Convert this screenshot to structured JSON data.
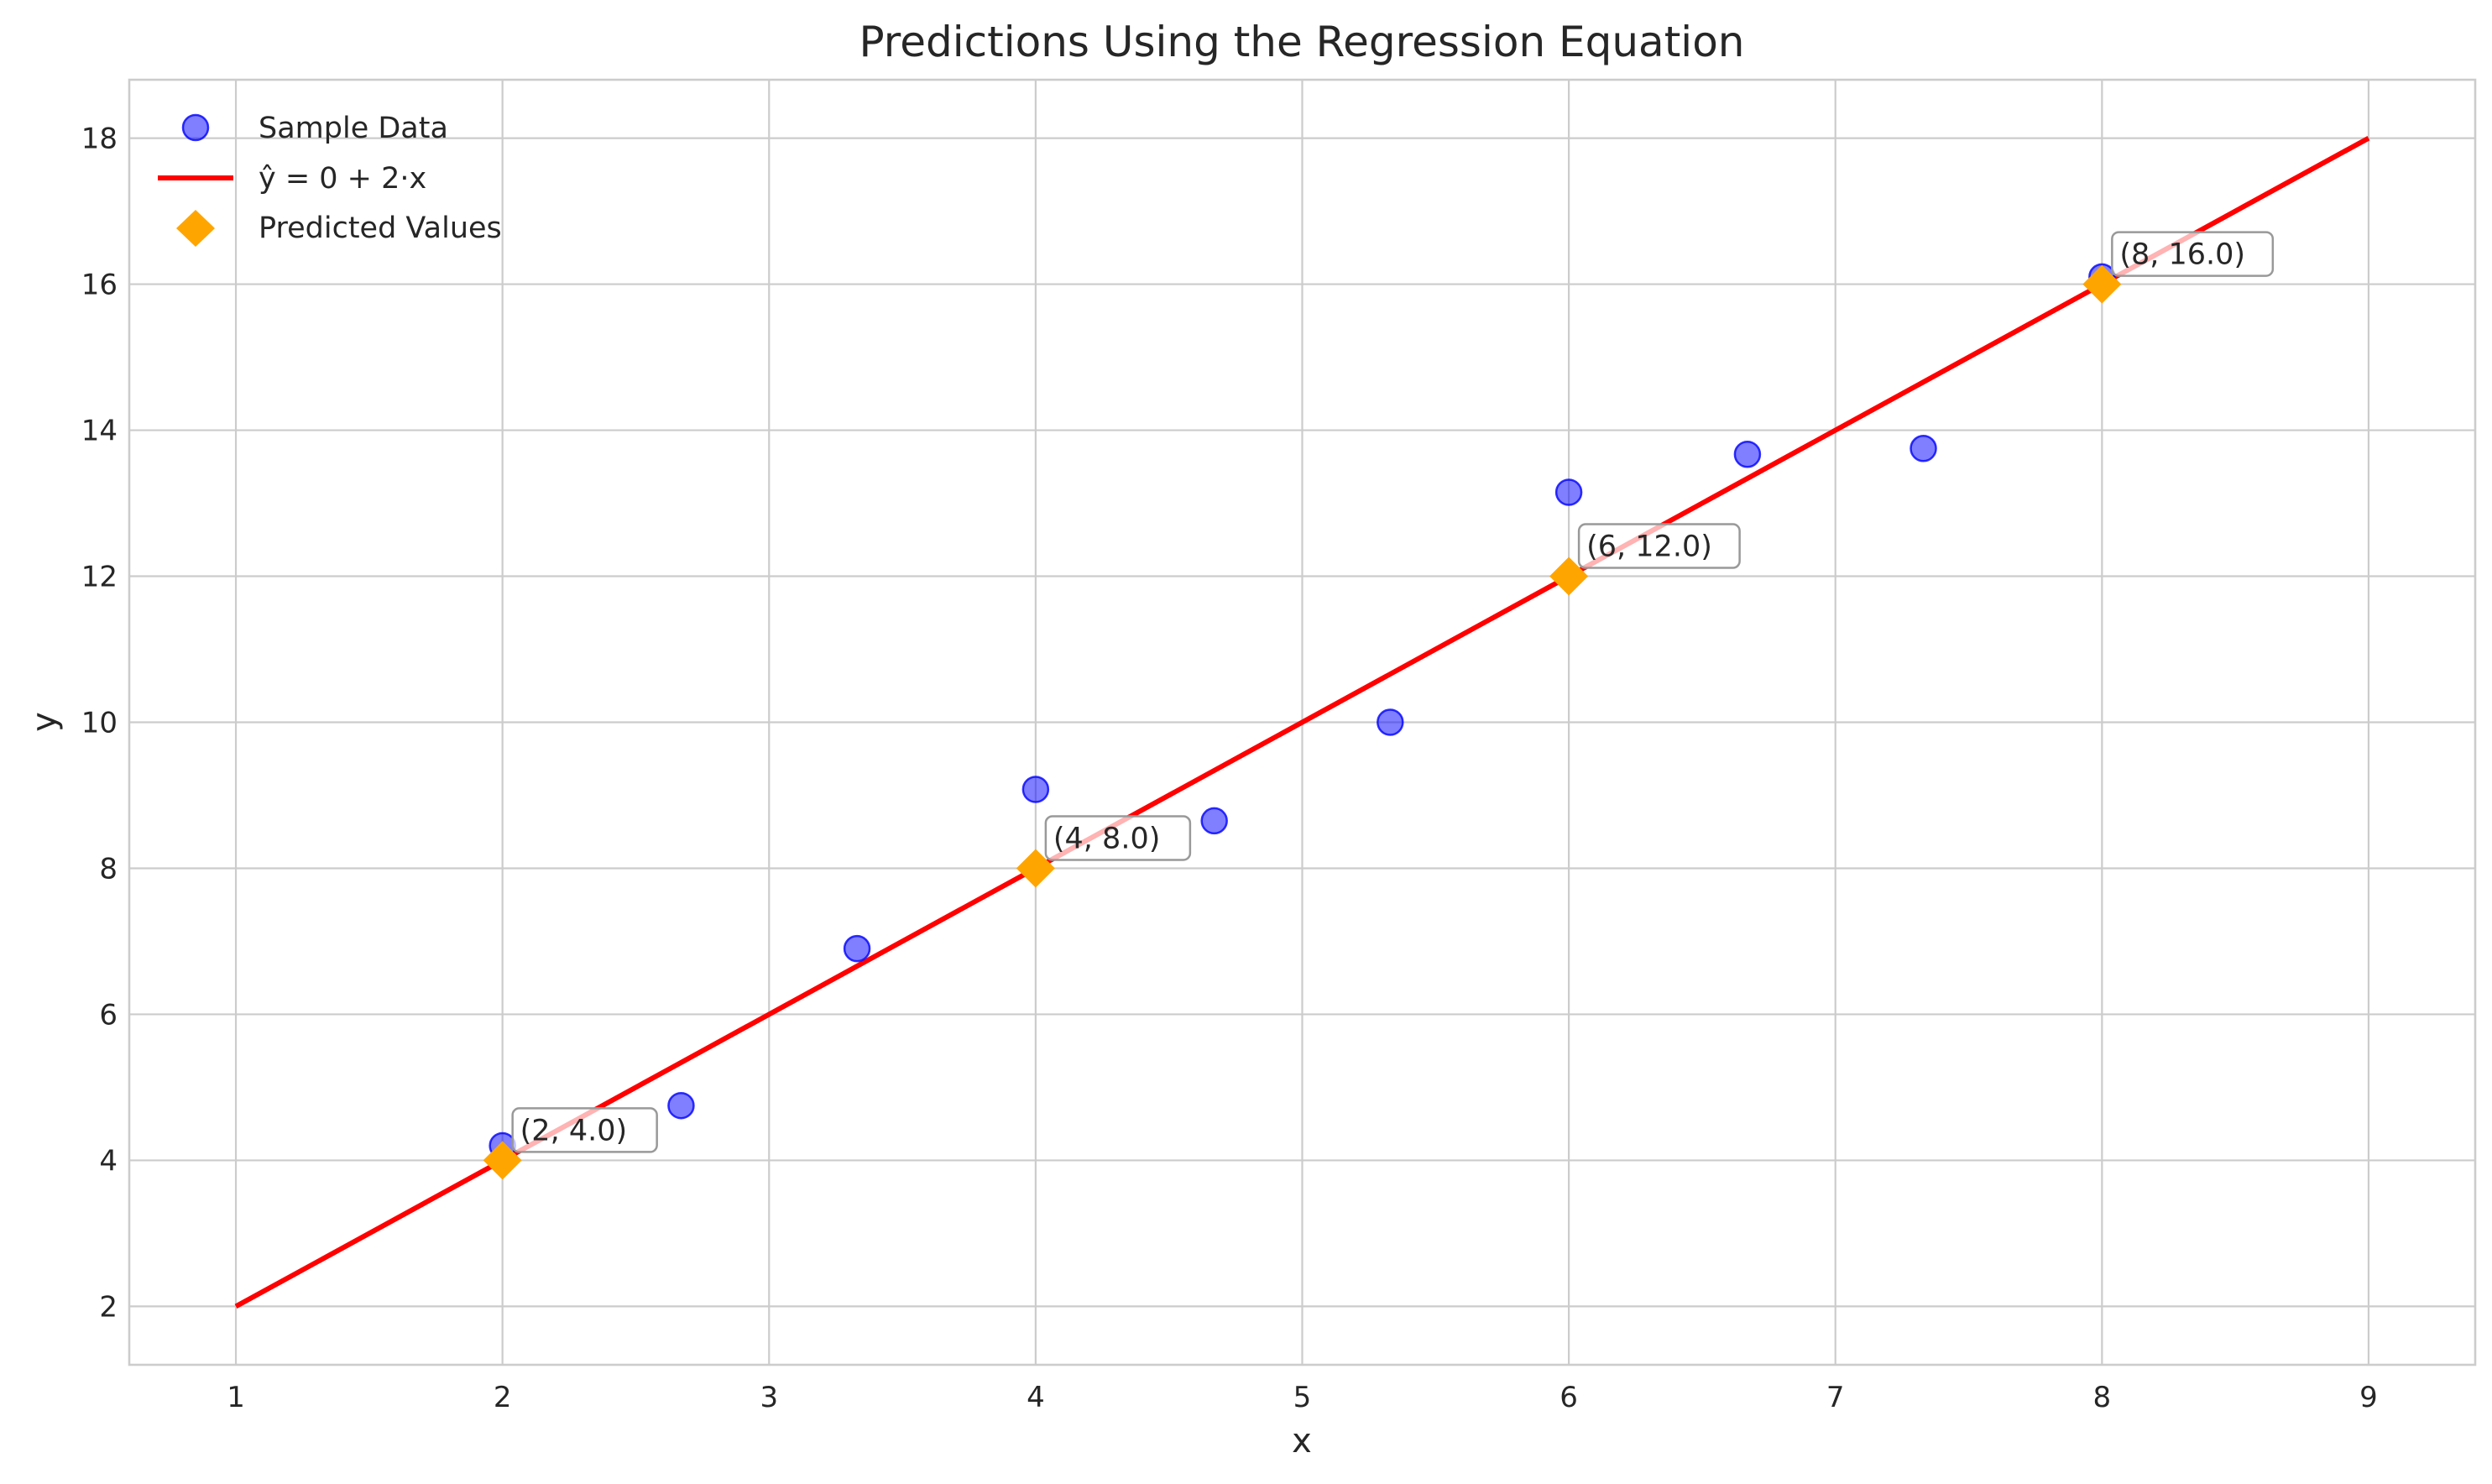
{
  "chart_data": {
    "type": "scatter",
    "title": "Predictions Using the Regression Equation",
    "xlabel": "x",
    "ylabel": "y",
    "xlim": [
      0.6,
      9.4
    ],
    "ylim": [
      1.2,
      18.8
    ],
    "xticks": [
      1,
      2,
      3,
      4,
      5,
      6,
      7,
      8,
      9
    ],
    "yticks": [
      2,
      4,
      6,
      8,
      10,
      12,
      14,
      16,
      18
    ],
    "grid": true,
    "legend_position": "top-left",
    "series": [
      {
        "name": "Sample Data",
        "kind": "scatter",
        "marker": "circle",
        "color": "#0000ff",
        "x": [
          2.0,
          2.67,
          3.33,
          4.0,
          4.67,
          5.33,
          6.0,
          6.67,
          7.33,
          8.0
        ],
        "y": [
          4.2,
          4.75,
          6.9,
          9.08,
          8.65,
          10.0,
          13.15,
          13.67,
          13.75,
          16.1
        ]
      },
      {
        "name": "ŷ = 0 + 2·x",
        "kind": "line",
        "color": "#ff0000",
        "x": [
          1,
          9
        ],
        "y": [
          2,
          18
        ]
      },
      {
        "name": "Predicted Values",
        "kind": "scatter",
        "marker": "diamond",
        "color": "#ffa500",
        "x": [
          2,
          4,
          6,
          8
        ],
        "y": [
          4.0,
          8.0,
          12.0,
          16.0
        ]
      }
    ],
    "annotations": [
      {
        "x": 2,
        "y": 4.0,
        "text": "(2, 4.0)"
      },
      {
        "x": 4,
        "y": 8.0,
        "text": "(4, 8.0)"
      },
      {
        "x": 6,
        "y": 12.0,
        "text": "(6, 12.0)"
      },
      {
        "x": 8,
        "y": 16.0,
        "text": "(8, 16.0)"
      }
    ]
  }
}
